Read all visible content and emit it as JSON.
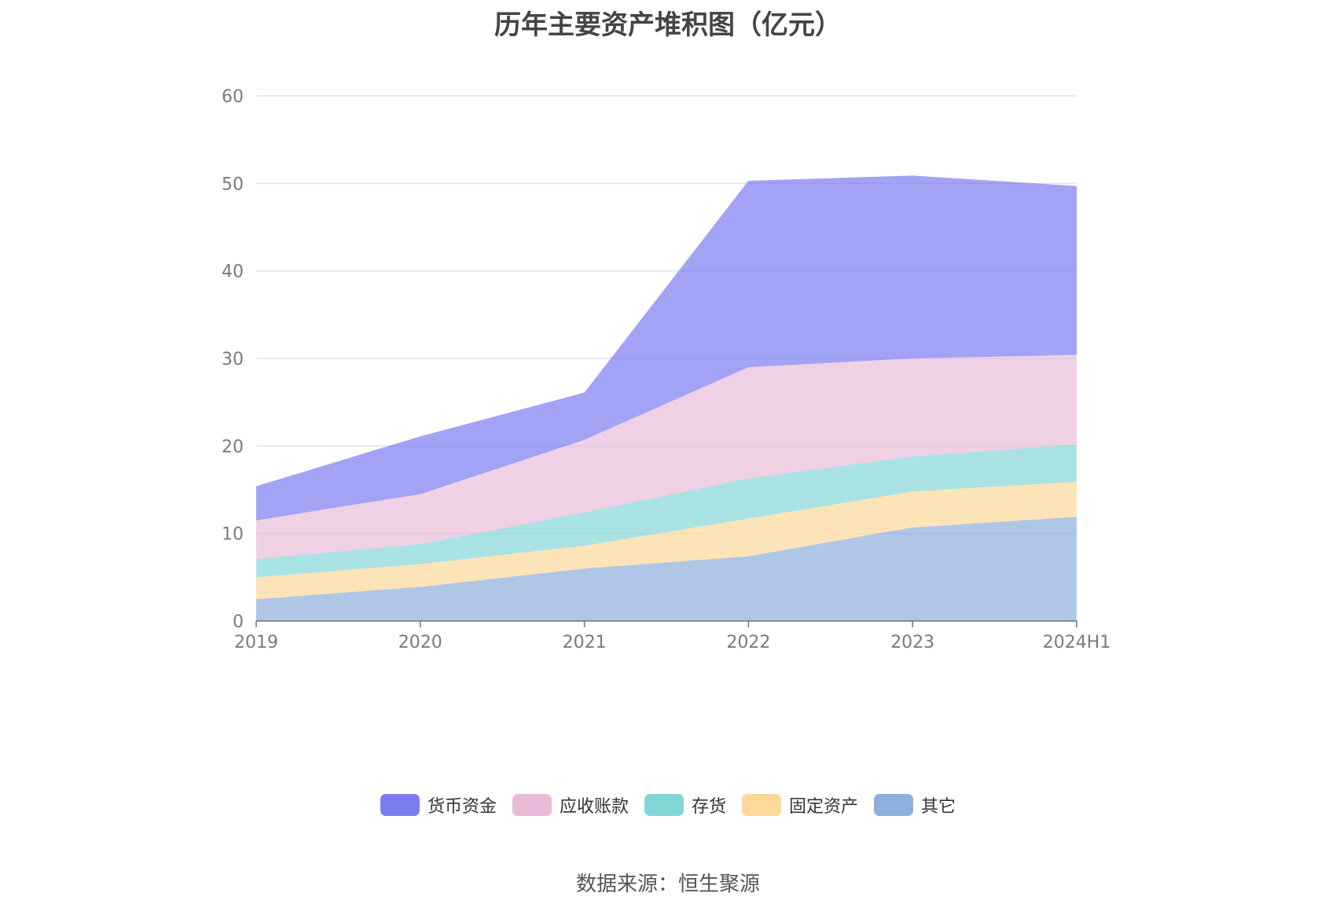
{
  "chart_data": {
    "type": "area",
    "stacked": true,
    "title": "历年主要资产堆积图（亿元）",
    "categories": [
      "2019",
      "2020",
      "2021",
      "2022",
      "2023",
      "2024H1"
    ],
    "ylim": [
      0,
      60
    ],
    "yticks": [
      0,
      10,
      20,
      30,
      40,
      50,
      60
    ],
    "grid": true,
    "legend_position": "bottom",
    "series": [
      {
        "name": "其它",
        "color": "#8eaedc",
        "values": [
          2.5,
          3.9,
          6.0,
          7.4,
          10.7,
          11.9
        ]
      },
      {
        "name": "固定资产",
        "color": "#fcd99a",
        "values": [
          2.5,
          2.6,
          2.6,
          4.3,
          4.1,
          4.0
        ]
      },
      {
        "name": "存货",
        "color": "#84d6d6",
        "values": [
          2.1,
          2.3,
          3.8,
          4.6,
          4.0,
          4.3
        ]
      },
      {
        "name": "应收账款",
        "color": "#e8bcd9",
        "values": [
          4.4,
          5.7,
          8.3,
          12.7,
          11.2,
          10.2
        ]
      },
      {
        "name": "货币资金",
        "color": "#7b7cf0",
        "values": [
          3.9,
          6.6,
          5.4,
          21.3,
          20.9,
          19.3
        ]
      }
    ],
    "legend_order": [
      "货币资金",
      "应收账款",
      "存货",
      "固定资产",
      "其它"
    ]
  },
  "source_text": "数据来源：恒生聚源"
}
